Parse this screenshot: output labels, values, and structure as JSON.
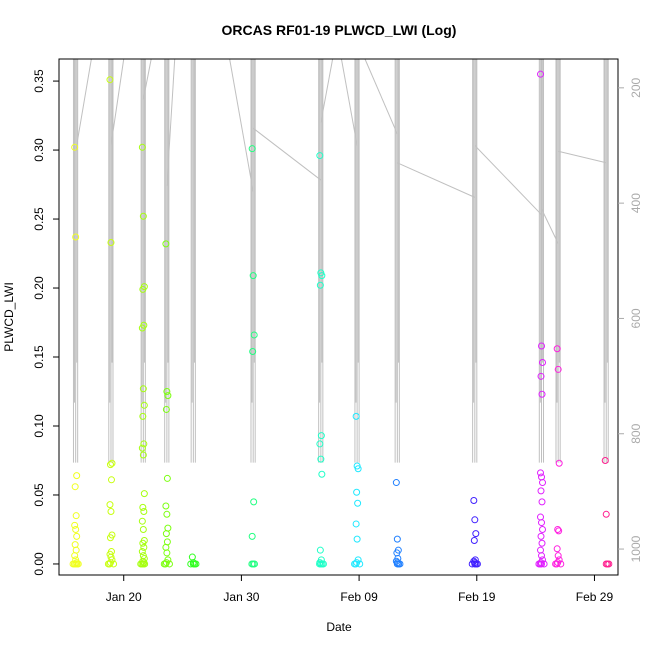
{
  "chart_data": {
    "type": "scatter",
    "title": "ORCAS RF01-19 PLWCD_LWI (Log)",
    "xlabel": "Date",
    "ylabel": "PLWCD_LWI",
    "xlim": [
      "2016-01-14T12:00",
      "2016-03-02T00:00"
    ],
    "ylim": [
      -0.008,
      0.366
    ],
    "x_ticks": [
      {
        "date": "2016-01-20",
        "label": "Jan 20"
      },
      {
        "date": "2016-01-30",
        "label": "Jan 30"
      },
      {
        "date": "2016-02-09",
        "label": "Feb 09"
      },
      {
        "date": "2016-02-19",
        "label": "Feb 19"
      },
      {
        "date": "2016-02-29",
        "label": "Feb 29"
      }
    ],
    "y_ticks": [
      0.0,
      0.05,
      0.1,
      0.15,
      0.2,
      0.25,
      0.3,
      0.35
    ],
    "y_tick_labels": [
      "0.00",
      "0.05",
      "0.10",
      "0.15",
      "0.20",
      "0.25",
      "0.30",
      "0.35"
    ],
    "y2_lim": [
      1045,
      150
    ],
    "y2_ticks": [
      200,
      400,
      600,
      800,
      1000
    ],
    "y2_tick_labels": [
      "200",
      "400",
      "600",
      "800",
      "1000"
    ],
    "altitude_color": "#c0c0c0",
    "grid": false,
    "legend": "none",
    "flights": [
      {
        "x": "2016-01-15T22:00",
        "color": "#f0ff20",
        "values": [
          0.302,
          0.237,
          0.064,
          0.056,
          0.035,
          0.028,
          0.025,
          0.02,
          0.014,
          0.01,
          0.006,
          0.003,
          0.001,
          0.0,
          0.0,
          0.0,
          0.0,
          0.0
        ]
      },
      {
        "x": "2016-01-18T22:00",
        "color": "#c8ff10",
        "values": [
          0.351,
          0.233,
          0.073,
          0.072,
          0.061,
          0.043,
          0.038,
          0.021,
          0.019,
          0.009,
          0.007,
          0.005,
          0.003,
          0.001,
          0.0,
          0.0,
          0.0
        ]
      },
      {
        "x": "2016-01-21T16:00",
        "color": "#a6ff10",
        "values": [
          0.302,
          0.252,
          0.201,
          0.199,
          0.173,
          0.171,
          0.127,
          0.115,
          0.107,
          0.087,
          0.084,
          0.079,
          0.051,
          0.041,
          0.038,
          0.031,
          0.025,
          0.017,
          0.015,
          0.012,
          0.009,
          0.006,
          0.004,
          0.002,
          0.001,
          0.0,
          0.0,
          0.0,
          0.0
        ]
      },
      {
        "x": "2016-01-23T16:00",
        "color": "#7cff10",
        "values": [
          0.232,
          0.125,
          0.122,
          0.112,
          0.062,
          0.042,
          0.036,
          0.026,
          0.022,
          0.016,
          0.012,
          0.008,
          0.003,
          0.001,
          0.0,
          0.0,
          0.0
        ]
      },
      {
        "x": "2016-01-25T22:00",
        "color": "#30ff20",
        "values": [
          0.005,
          0.001,
          0.0,
          0.0,
          0.0,
          0.0
        ]
      },
      {
        "x": "2016-01-31T00:00",
        "color": "#20ff80",
        "values": [
          0.301,
          0.209,
          0.166,
          0.154,
          0.045,
          0.02,
          0.0,
          0.0,
          0.0
        ]
      },
      {
        "x": "2016-02-05T18:00",
        "color": "#20ffc8",
        "values": [
          0.296,
          0.211,
          0.209,
          0.202,
          0.093,
          0.087,
          0.076,
          0.065,
          0.01,
          0.003,
          0.001,
          0.0,
          0.0,
          0.0,
          0.0
        ]
      },
      {
        "x": "2016-02-08T20:00",
        "color": "#20e8ff",
        "values": [
          0.107,
          0.071,
          0.069,
          0.052,
          0.044,
          0.029,
          0.018,
          0.003,
          0.001,
          0.0,
          0.0,
          0.0
        ]
      },
      {
        "x": "2016-02-12T06:00",
        "color": "#2080ff",
        "values": [
          0.059,
          0.018,
          0.01,
          0.008,
          0.004,
          0.002,
          0.001,
          0.0,
          0.0,
          0.0
        ]
      },
      {
        "x": "2016-02-18T20:00",
        "color": "#4020ff",
        "values": [
          0.046,
          0.032,
          0.022,
          0.017,
          0.003,
          0.002,
          0.001,
          0.0,
          0.0,
          0.0,
          0.0
        ]
      },
      {
        "x": "2016-02-24T12:00",
        "color": "#e020ff",
        "values": [
          0.355,
          0.158,
          0.146,
          0.136,
          0.123,
          0.066,
          0.063,
          0.059,
          0.053,
          0.045,
          0.034,
          0.03,
          0.025,
          0.02,
          0.015,
          0.01,
          0.006,
          0.003,
          0.001,
          0.0,
          0.0,
          0.0,
          0.0
        ]
      },
      {
        "x": "2016-02-25T22:00",
        "color": "#ff20e0",
        "values": [
          0.156,
          0.141,
          0.073,
          0.025,
          0.024,
          0.011,
          0.006,
          0.003,
          0.001,
          0.0,
          0.0,
          0.0
        ]
      },
      {
        "x": "2016-03-01T00:00",
        "color": "#ff2090",
        "values": [
          0.075,
          0.036,
          0.0,
          0.0,
          0.0
        ]
      }
    ],
    "altitude_sweeps": [
      {
        "x": "2016-01-15T22:00",
        "top": 150,
        "bottom": 850
      },
      {
        "x": "2016-01-18T22:00",
        "top": 150,
        "bottom": 850
      },
      {
        "x": "2016-01-21T16:00",
        "top": 150,
        "bottom": 850
      },
      {
        "x": "2016-01-23T16:00",
        "top": 150,
        "bottom": 850
      },
      {
        "x": "2016-01-25T22:00",
        "top": 150,
        "bottom": 850
      },
      {
        "x": "2016-01-31T00:00",
        "top": 150,
        "bottom": 850
      },
      {
        "x": "2016-02-05T18:00",
        "top": 150,
        "bottom": 850
      },
      {
        "x": "2016-02-08T20:00",
        "top": 150,
        "bottom": 850
      },
      {
        "x": "2016-02-12T06:00",
        "top": 150,
        "bottom": 850
      },
      {
        "x": "2016-02-18T20:00",
        "top": 150,
        "bottom": 850
      },
      {
        "x": "2016-02-24T12:00",
        "top": 150,
        "bottom": 850
      },
      {
        "x": "2016-02-25T22:00",
        "top": 150,
        "bottom": 850
      },
      {
        "x": "2016-03-01T00:00",
        "top": 150,
        "bottom": 850
      }
    ],
    "altitude_connectors": [
      {
        "x1": "2016-01-15T22:00",
        "y1": 310,
        "x2": "2016-01-17T06:00",
        "y2": 150
      },
      {
        "x1": "2016-01-18T22:00",
        "y1": 300,
        "x2": "2016-01-20T00:00",
        "y2": 150
      },
      {
        "x1": "2016-01-21T16:00",
        "y1": 220,
        "x2": "2016-01-22T08:00",
        "y2": 150
      },
      {
        "x1": "2016-01-23T16:00",
        "y1": 370,
        "x2": "2016-01-24T08:00",
        "y2": 150
      },
      {
        "x1": "2016-01-25T22:00",
        "y1": 150,
        "x2": "2016-01-26T16:00",
        "y2": 150
      },
      {
        "x1": "2016-01-29T00:00",
        "y1": 150,
        "x2": "2016-01-31T00:00",
        "y2": 380
      },
      {
        "x1": "2016-01-31T00:00",
        "y1": 270,
        "x2": "2016-02-05T18:00",
        "y2": 360
      },
      {
        "x1": "2016-02-05T18:00",
        "y1": 260,
        "x2": "2016-02-06T18:00",
        "y2": 150
      },
      {
        "x1": "2016-02-07T12:00",
        "y1": 150,
        "x2": "2016-02-08T20:00",
        "y2": 300
      },
      {
        "x1": "2016-02-09T12:00",
        "y1": 150,
        "x2": "2016-02-12T06:00",
        "y2": 280
      },
      {
        "x1": "2016-02-12T06:00",
        "y1": 330,
        "x2": "2016-02-18T20:00",
        "y2": 390
      },
      {
        "x1": "2016-02-18T20:00",
        "y1": 300,
        "x2": "2016-02-24T12:00",
        "y2": 420
      },
      {
        "x1": "2016-02-24T12:00",
        "y1": 410,
        "x2": "2016-02-25T22:00",
        "y2": 470
      },
      {
        "x1": "2016-02-25T22:00",
        "y1": 310,
        "x2": "2016-03-01T00:00",
        "y2": 330
      }
    ]
  }
}
